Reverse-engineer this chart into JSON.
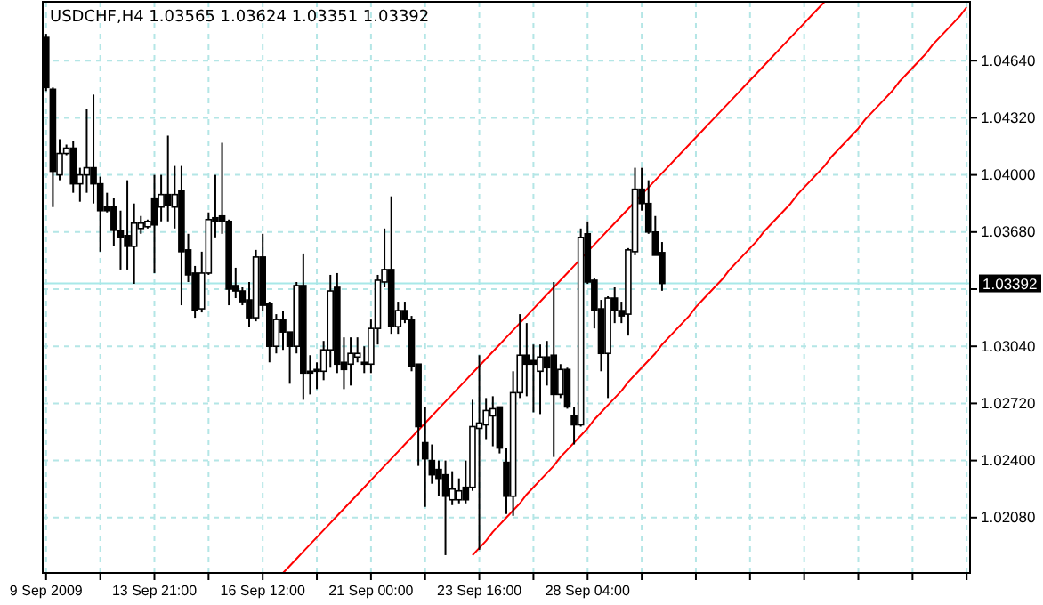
{
  "chart_data": {
    "type": "candlestick",
    "title": "USDCHF,H4 1.03565 1.03624 1.03351 1.03392",
    "categories": [
      "9 Sep 2009",
      null,
      null,
      null,
      null,
      null,
      null,
      null,
      null,
      null,
      null,
      null,
      null,
      null,
      null,
      null,
      "13 Sep 21:00",
      null,
      null,
      null,
      null,
      null,
      null,
      null,
      null,
      null,
      null,
      null,
      null,
      null,
      null,
      null,
      "16 Sep 12:00",
      null,
      null,
      null,
      null,
      null,
      null,
      null,
      null,
      null,
      null,
      null,
      null,
      null,
      null,
      null,
      "21 Sep 00:00",
      null,
      null,
      null,
      null,
      null,
      null,
      null,
      null,
      null,
      null,
      null,
      null,
      null,
      null,
      null,
      "23 Sep 16:00",
      null,
      null,
      null,
      null,
      null,
      null,
      null,
      null,
      null,
      null,
      null,
      null,
      null,
      null,
      null,
      "28 Sep 04:00",
      null,
      null,
      null,
      null,
      null,
      null,
      null,
      null,
      null,
      null,
      null,
      null,
      null,
      null,
      null,
      null,
      null,
      null,
      null,
      null,
      null,
      null,
      null,
      null,
      null,
      null,
      null,
      null,
      null,
      null,
      null,
      null,
      null,
      null,
      null,
      null,
      null,
      null,
      null,
      null,
      null,
      null,
      null,
      null,
      null,
      null,
      null,
      null,
      null,
      null,
      null,
      null,
      null,
      null,
      null,
      null
    ],
    "ohlc": [
      [
        1.0477,
        1.0479,
        1.0447,
        1.0449
      ],
      [
        1.0448,
        1.0449,
        1.0382,
        1.0402
      ],
      [
        1.04,
        1.042,
        1.0397,
        1.0412
      ],
      [
        1.0412,
        1.0417,
        1.0411,
        1.0415
      ],
      [
        1.0415,
        1.0419,
        1.039,
        1.0395
      ],
      [
        1.0395,
        1.0404,
        1.0385,
        1.04
      ],
      [
        1.04,
        1.0437,
        1.039,
        1.0404
      ],
      [
        1.0404,
        1.0445,
        1.0384,
        1.0395
      ],
      [
        1.0395,
        1.0399,
        1.0357,
        1.038
      ],
      [
        1.0382,
        1.039,
        1.0379,
        1.038
      ],
      [
        1.0382,
        1.0387,
        1.036,
        1.0369
      ],
      [
        1.0369,
        1.038,
        1.0347,
        1.0365
      ],
      [
        1.0366,
        1.0397,
        1.0347,
        1.036
      ],
      [
        1.036,
        1.0384,
        1.0339,
        1.0373
      ],
      [
        1.037,
        1.0377,
        1.0367,
        1.0373
      ],
      [
        1.0371,
        1.0375,
        1.037,
        1.0374
      ],
      [
        1.0387,
        1.04,
        1.0345,
        1.0372
      ],
      [
        1.0382,
        1.04,
        1.0374,
        1.0389
      ],
      [
        1.0389,
        1.0422,
        1.0374,
        1.0383
      ],
      [
        1.0382,
        1.0405,
        1.037,
        1.0389
      ],
      [
        1.0391,
        1.0405,
        1.0327,
        1.0357
      ],
      [
        1.0358,
        1.0367,
        1.034,
        1.0344
      ],
      [
        1.0345,
        1.0349,
        1.032,
        1.0324
      ],
      [
        1.0325,
        1.0357,
        1.0323,
        1.0345
      ],
      [
        1.0345,
        1.0379,
        1.0344,
        1.0375
      ],
      [
        1.0376,
        1.04,
        1.0365,
        1.0374
      ],
      [
        1.0377,
        1.0418,
        1.0367,
        1.0374
      ],
      [
        1.0374,
        1.0375,
        1.0327,
        1.0336
      ],
      [
        1.0338,
        1.0348,
        1.0331,
        1.0335
      ],
      [
        1.0335,
        1.0337,
        1.0327,
        1.0329
      ],
      [
        1.033,
        1.034,
        1.0315,
        1.032
      ],
      [
        1.032,
        1.0358,
        1.0318,
        1.0354
      ],
      [
        1.0354,
        1.0367,
        1.0324,
        1.0327
      ],
      [
        1.0328,
        1.0329,
        1.0295,
        1.0304
      ],
      [
        1.0304,
        1.0322,
        1.03,
        1.0319
      ],
      [
        1.0319,
        1.0324,
        1.0302,
        1.0312
      ],
      [
        1.0312,
        1.0312,
        1.0283,
        1.0304
      ],
      [
        1.0304,
        1.034,
        1.03,
        1.0338
      ],
      [
        1.0338,
        1.0356,
        1.0274,
        1.0289
      ],
      [
        1.029,
        1.0299,
        1.0277,
        1.0289
      ],
      [
        1.0291,
        1.0295,
        1.028,
        1.029
      ],
      [
        1.029,
        1.0307,
        1.0285,
        1.0302
      ],
      [
        1.0302,
        1.0344,
        1.0292,
        1.0335
      ],
      [
        1.0337,
        1.0345,
        1.0289,
        1.0294
      ],
      [
        1.0295,
        1.0309,
        1.028,
        1.0291
      ],
      [
        1.0294,
        1.0309,
        1.0282,
        1.03
      ],
      [
        1.0298,
        1.0309,
        1.0295,
        1.03
      ],
      [
        1.0295,
        1.0304,
        1.0289,
        1.0294
      ],
      [
        1.0294,
        1.0319,
        1.0289,
        1.0314
      ],
      [
        1.0314,
        1.0344,
        1.0305,
        1.0341
      ],
      [
        1.034,
        1.037,
        1.0337,
        1.0347
      ],
      [
        1.0347,
        1.0388,
        1.0311,
        1.0315
      ],
      [
        1.0315,
        1.0329,
        1.0311,
        1.0324
      ],
      [
        1.0324,
        1.0329,
        1.0317,
        1.0319
      ],
      [
        1.0319,
        1.0321,
        1.029,
        1.0293
      ],
      [
        1.0294,
        1.0294,
        1.0237,
        1.0259
      ],
      [
        1.025,
        1.027,
        1.0214,
        1.0241
      ],
      [
        1.024,
        1.0249,
        1.0227,
        1.0232
      ],
      [
        1.0235,
        1.024,
        1.022,
        1.023
      ],
      [
        1.0232,
        1.024,
        1.0187,
        1.022
      ],
      [
        1.0218,
        1.0234,
        1.0215,
        1.0224
      ],
      [
        1.0218,
        1.023,
        1.0216,
        1.0223
      ],
      [
        1.0225,
        1.024,
        1.0216,
        1.0218
      ],
      [
        1.0225,
        1.0274,
        1.0223,
        1.0259
      ],
      [
        1.0258,
        1.0299,
        1.019,
        1.0261
      ],
      [
        1.026,
        1.0275,
        1.0252,
        1.0268
      ],
      [
        1.0265,
        1.0276,
        1.0248,
        1.0269
      ],
      [
        1.027,
        1.027,
        1.0244,
        1.0247
      ],
      [
        1.0239,
        1.0247,
        1.021,
        1.022
      ],
      [
        1.022,
        1.029,
        1.0209,
        1.0278
      ],
      [
        1.0278,
        1.0322,
        1.0275,
        1.0299
      ],
      [
        1.0299,
        1.0317,
        1.0276,
        1.0294
      ],
      [
        1.0296,
        1.0305,
        1.0267,
        1.0294
      ],
      [
        1.029,
        1.0305,
        1.0266,
        1.0298
      ],
      [
        1.0298,
        1.0307,
        1.0282,
        1.0292
      ],
      [
        1.0299,
        1.034,
        1.0242,
        1.0277
      ],
      [
        1.0277,
        1.0294,
        1.0275,
        1.0291
      ],
      [
        1.0291,
        1.0292,
        1.0269,
        1.027
      ],
      [
        1.0265,
        1.027,
        1.0249,
        1.026
      ],
      [
        1.026,
        1.037,
        1.0259,
        1.0365
      ],
      [
        1.0367,
        1.0374,
        1.0339,
        1.034
      ],
      [
        1.0341,
        1.0342,
        1.0314,
        1.0324
      ],
      [
        1.0325,
        1.033,
        1.029,
        1.03
      ],
      [
        1.03,
        1.0332,
        1.0275,
        1.0331
      ],
      [
        1.0331,
        1.0337,
        1.0317,
        1.0324
      ],
      [
        1.0324,
        1.0329,
        1.0317,
        1.0321
      ],
      [
        1.0322,
        1.0359,
        1.031,
        1.0358
      ],
      [
        1.0357,
        1.0404,
        1.0355,
        1.0392
      ],
      [
        1.0392,
        1.0404,
        1.038,
        1.0384
      ],
      [
        1.0384,
        1.0397,
        1.0367,
        1.0368
      ],
      [
        1.0368,
        1.0377,
        1.0355,
        1.0355
      ],
      [
        1.03565,
        1.03624,
        1.03351,
        1.03392
      ],
      null,
      null,
      null,
      null,
      null,
      null,
      null,
      null,
      null,
      null,
      null,
      null,
      null,
      null,
      null,
      null,
      null,
      null,
      null,
      null,
      null,
      null,
      null,
      null,
      null,
      null,
      null,
      null,
      null,
      null,
      null,
      null,
      null,
      null,
      null,
      null,
      null,
      null,
      null,
      null,
      null,
      null,
      null,
      null,
      null
    ],
    "series": [
      {
        "type": "line",
        "color": "#ff0000",
        "values": [
          null,
          null,
          null,
          null,
          null,
          null,
          null,
          null,
          null,
          null,
          null,
          null,
          null,
          null,
          null,
          null,
          null,
          null,
          null,
          null,
          null,
          null,
          null,
          null,
          null,
          null,
          null,
          null,
          null,
          null,
          null,
          null,
          null,
          null,
          null,
          1.0177,
          1.0181,
          1.0185,
          1.0189,
          1.0193,
          1.0197,
          1.0201,
          1.0205,
          1.0209,
          1.0213,
          1.0217,
          1.0221,
          1.0225,
          1.0229,
          1.0233,
          1.0237,
          1.0241,
          1.0245,
          1.0249,
          1.0253,
          1.0257,
          1.0261,
          1.0265,
          1.0269,
          1.0273,
          1.0277,
          1.0281,
          1.0285,
          1.0289,
          1.0293,
          1.0297,
          1.0301,
          1.0305,
          1.0309,
          1.0313,
          1.0317,
          1.0321,
          1.0325,
          1.0329,
          1.0333,
          1.0337,
          1.0341,
          1.0345,
          1.0349,
          1.0353,
          1.0357,
          1.0361,
          1.0365,
          1.0369,
          1.0373,
          1.0377,
          1.0381,
          1.0385,
          1.0389,
          1.0393,
          1.0397,
          1.0401,
          1.0405,
          1.0409,
          1.0413,
          1.0417,
          1.0421,
          1.0425,
          1.0429,
          1.0433,
          1.0437,
          1.0441,
          1.0445,
          1.0449,
          1.0453,
          1.0457,
          1.0461,
          1.0465,
          1.0469,
          1.0473,
          1.0477,
          1.0481,
          1.0485,
          1.0489,
          1.0493,
          1.0497,
          null,
          null,
          null,
          null,
          null,
          null,
          null,
          null,
          null,
          null,
          null,
          null,
          null,
          null,
          null,
          null,
          null,
          null,
          null,
          null,
          null
        ]
      },
      {
        "type": "line",
        "color": "#ff0000",
        "values": [
          null,
          null,
          null,
          null,
          null,
          null,
          null,
          null,
          null,
          null,
          null,
          null,
          null,
          null,
          null,
          null,
          null,
          null,
          null,
          null,
          null,
          null,
          null,
          null,
          null,
          null,
          null,
          null,
          null,
          null,
          null,
          null,
          null,
          null,
          null,
          null,
          null,
          null,
          null,
          null,
          null,
          null,
          null,
          null,
          null,
          null,
          null,
          null,
          null,
          null,
          null,
          null,
          null,
          null,
          null,
          null,
          null,
          null,
          null,
          null,
          null,
          null,
          null,
          1.0187,
          1.0191,
          1.0195,
          1.02,
          1.0204,
          1.0208,
          1.0212,
          1.0216,
          1.0221,
          1.0225,
          1.0229,
          1.0233,
          1.0237,
          1.0242,
          1.0246,
          1.025,
          1.0254,
          1.0258,
          1.0263,
          1.0267,
          1.0271,
          1.0275,
          1.0279,
          1.0284,
          1.0288,
          1.0292,
          1.0296,
          1.03,
          1.0305,
          1.0309,
          1.0313,
          1.0317,
          1.0321,
          1.0326,
          1.033,
          1.0334,
          1.0338,
          1.0342,
          1.0347,
          1.0351,
          1.0355,
          1.0359,
          1.0363,
          1.0368,
          1.0372,
          1.0376,
          1.038,
          1.0384,
          1.0389,
          1.0393,
          1.0397,
          1.0401,
          1.0405,
          1.041,
          1.0414,
          1.0418,
          1.0422,
          1.0426,
          1.0431,
          1.0435,
          1.0439,
          1.0443,
          1.0447,
          1.0452,
          1.0456,
          1.046,
          1.0464,
          1.0468,
          1.0473,
          1.0477,
          1.0481,
          1.0485,
          1.0489,
          1.0494
        ]
      }
    ],
    "ylim": [
      1.0177,
      1.0497
    ],
    "yticks": [
      {
        "value": 1.0208,
        "label": "1.02080"
      },
      {
        "value": 1.024,
        "label": "1.02400"
      },
      {
        "value": 1.0272,
        "label": "1.02720"
      },
      {
        "value": 1.0304,
        "label": "1.03040"
      },
      {
        "value": 1.0336,
        "label": null
      },
      {
        "value": 1.0368,
        "label": "1.03680"
      },
      {
        "value": 1.04,
        "label": "1.04000"
      },
      {
        "value": 1.0432,
        "label": "1.04320"
      },
      {
        "value": 1.0464,
        "label": "1.04640"
      }
    ],
    "grid": true,
    "ref_lines": [
      {
        "axis": "y",
        "value": 1.03392,
        "label": "1.03392",
        "color": "#a8e8e8"
      }
    ]
  }
}
